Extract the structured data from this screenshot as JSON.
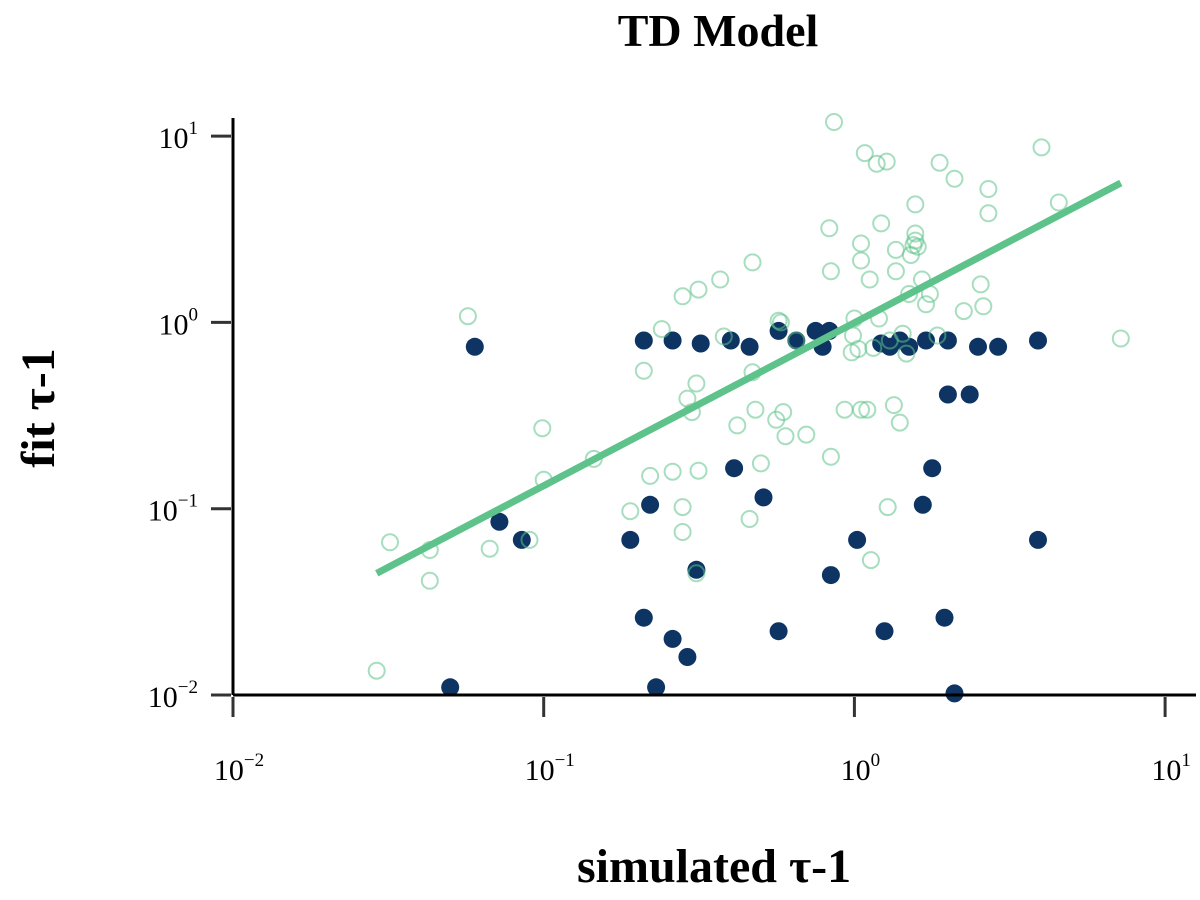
{
  "chart_data": {
    "type": "scatter",
    "title": "TD Model",
    "xlabel": "simulated τ-1",
    "ylabel": "fit τ-1",
    "xscale": "log",
    "yscale": "log",
    "xlim": [
      0.01,
      15
    ],
    "ylim": [
      0.01,
      12
    ],
    "x_ticks": [
      {
        "base": "10",
        "exp": "−2",
        "value": 0.01
      },
      {
        "base": "10",
        "exp": "−1",
        "value": 0.1
      },
      {
        "base": "10",
        "exp": "0",
        "value": 1
      },
      {
        "base": "10",
        "exp": "1",
        "value": 10
      }
    ],
    "y_ticks": [
      {
        "base": "10",
        "exp": "−2",
        "value": 0.01
      },
      {
        "base": "10",
        "exp": "−1",
        "value": 0.1
      },
      {
        "base": "10",
        "exp": "0",
        "value": 1
      },
      {
        "base": "10",
        "exp": "1",
        "value": 10
      }
    ],
    "grid": false,
    "colors": {
      "filled": "#0d3462",
      "open": "#5ec38b",
      "line": "#5ec38b"
    },
    "series": [
      {
        "marker": "filled",
        "points": [
          [
            0.06,
            0.74
          ],
          [
            0.05,
            0.011
          ],
          [
            0.072,
            0.085
          ],
          [
            0.085,
            0.068
          ],
          [
            0.19,
            0.068
          ],
          [
            0.21,
            0.8
          ],
          [
            0.22,
            0.105
          ],
          [
            0.21,
            0.026
          ],
          [
            0.23,
            0.011
          ],
          [
            0.26,
            0.8
          ],
          [
            0.26,
            0.02
          ],
          [
            0.29,
            0.016
          ],
          [
            0.31,
            0.047
          ],
          [
            0.32,
            0.77
          ],
          [
            0.4,
            0.8
          ],
          [
            0.41,
            0.165
          ],
          [
            0.46,
            0.74
          ],
          [
            0.51,
            0.115
          ],
          [
            0.57,
            0.9
          ],
          [
            0.57,
            0.022
          ],
          [
            0.65,
            0.8
          ],
          [
            0.75,
            0.9
          ],
          [
            0.79,
            0.74
          ],
          [
            0.83,
            0.9
          ],
          [
            0.84,
            0.044
          ],
          [
            1.02,
            0.068
          ],
          [
            1.22,
            0.77
          ],
          [
            1.3,
            0.74
          ],
          [
            1.25,
            0.022
          ],
          [
            1.4,
            0.8
          ],
          [
            1.5,
            0.74
          ],
          [
            1.7,
            0.8
          ],
          [
            1.66,
            0.105
          ],
          [
            1.78,
            0.165
          ],
          [
            2.0,
            0.41
          ],
          [
            2.0,
            0.8
          ],
          [
            1.95,
            0.026
          ],
          [
            2.1,
            0.0102
          ],
          [
            2.35,
            0.41
          ],
          [
            2.5,
            0.74
          ],
          [
            2.9,
            0.74
          ],
          [
            3.9,
            0.8
          ],
          [
            3.9,
            0.068
          ]
        ]
      },
      {
        "marker": "open",
        "points": [
          [
            0.029,
            0.0135
          ],
          [
            0.032,
            0.066
          ],
          [
            0.043,
            0.06
          ],
          [
            0.043,
            0.041
          ],
          [
            0.057,
            1.08
          ],
          [
            0.067,
            0.061
          ],
          [
            0.09,
            0.068
          ],
          [
            0.099,
            0.27
          ],
          [
            0.1,
            0.143
          ],
          [
            0.145,
            0.185
          ],
          [
            0.19,
            0.097
          ],
          [
            0.21,
            0.55
          ],
          [
            0.22,
            0.15
          ],
          [
            0.24,
            0.92
          ],
          [
            0.26,
            0.158
          ],
          [
            0.28,
            1.38
          ],
          [
            0.28,
            0.102
          ],
          [
            0.28,
            0.075
          ],
          [
            0.29,
            0.39
          ],
          [
            0.3,
            0.33
          ],
          [
            0.31,
            0.47
          ],
          [
            0.31,
            0.045
          ],
          [
            0.315,
            0.16
          ],
          [
            0.315,
            1.5
          ],
          [
            0.37,
            1.7
          ],
          [
            0.38,
            0.84
          ],
          [
            0.42,
            0.28
          ],
          [
            0.46,
            0.088
          ],
          [
            0.47,
            2.1
          ],
          [
            0.47,
            0.54
          ],
          [
            0.48,
            0.34
          ],
          [
            0.5,
            0.175
          ],
          [
            0.56,
            0.3
          ],
          [
            0.57,
            1.02
          ],
          [
            0.58,
            1.0
          ],
          [
            0.59,
            0.33
          ],
          [
            0.6,
            0.245
          ],
          [
            0.65,
            0.8
          ],
          [
            0.7,
            0.25
          ],
          [
            0.83,
            3.2
          ],
          [
            0.84,
            1.88
          ],
          [
            0.84,
            0.19
          ],
          [
            0.86,
            11.9
          ],
          [
            0.93,
            0.34
          ],
          [
            0.98,
            0.69
          ],
          [
            1.0,
            1.05
          ],
          [
            0.99,
            0.85
          ],
          [
            1.03,
            0.72
          ],
          [
            1.05,
            0.34
          ],
          [
            1.05,
            2.65
          ],
          [
            1.05,
            2.15
          ],
          [
            1.08,
            8.1
          ],
          [
            1.1,
            0.34
          ],
          [
            1.12,
            1.7
          ],
          [
            1.13,
            0.053
          ],
          [
            1.15,
            0.73
          ],
          [
            1.18,
            7.1
          ],
          [
            1.2,
            1.05
          ],
          [
            1.22,
            3.4
          ],
          [
            1.27,
            7.3
          ],
          [
            1.28,
            0.102
          ],
          [
            1.3,
            0.8
          ],
          [
            1.34,
            0.36
          ],
          [
            1.36,
            2.45
          ],
          [
            1.36,
            1.88
          ],
          [
            1.4,
            0.29
          ],
          [
            1.43,
            0.87
          ],
          [
            1.47,
            0.68
          ],
          [
            1.5,
            1.42
          ],
          [
            1.52,
            2.3
          ],
          [
            1.55,
            2.6
          ],
          [
            1.57,
            2.75
          ],
          [
            1.57,
            3.0
          ],
          [
            1.57,
            4.3
          ],
          [
            1.6,
            2.55
          ],
          [
            1.65,
            1.7
          ],
          [
            1.7,
            1.25
          ],
          [
            1.75,
            1.42
          ],
          [
            1.85,
            0.85
          ],
          [
            1.88,
            7.2
          ],
          [
            2.1,
            5.9
          ],
          [
            2.25,
            1.15
          ],
          [
            2.55,
            1.6
          ],
          [
            2.6,
            1.22
          ],
          [
            2.7,
            5.2
          ],
          [
            2.7,
            3.85
          ],
          [
            4.0,
            8.7
          ],
          [
            4.55,
            4.4
          ],
          [
            7.2,
            0.82
          ]
        ]
      }
    ],
    "fit_line": {
      "x": [
        0.029,
        7.2
      ],
      "y": [
        0.045,
        5.6
      ]
    }
  }
}
